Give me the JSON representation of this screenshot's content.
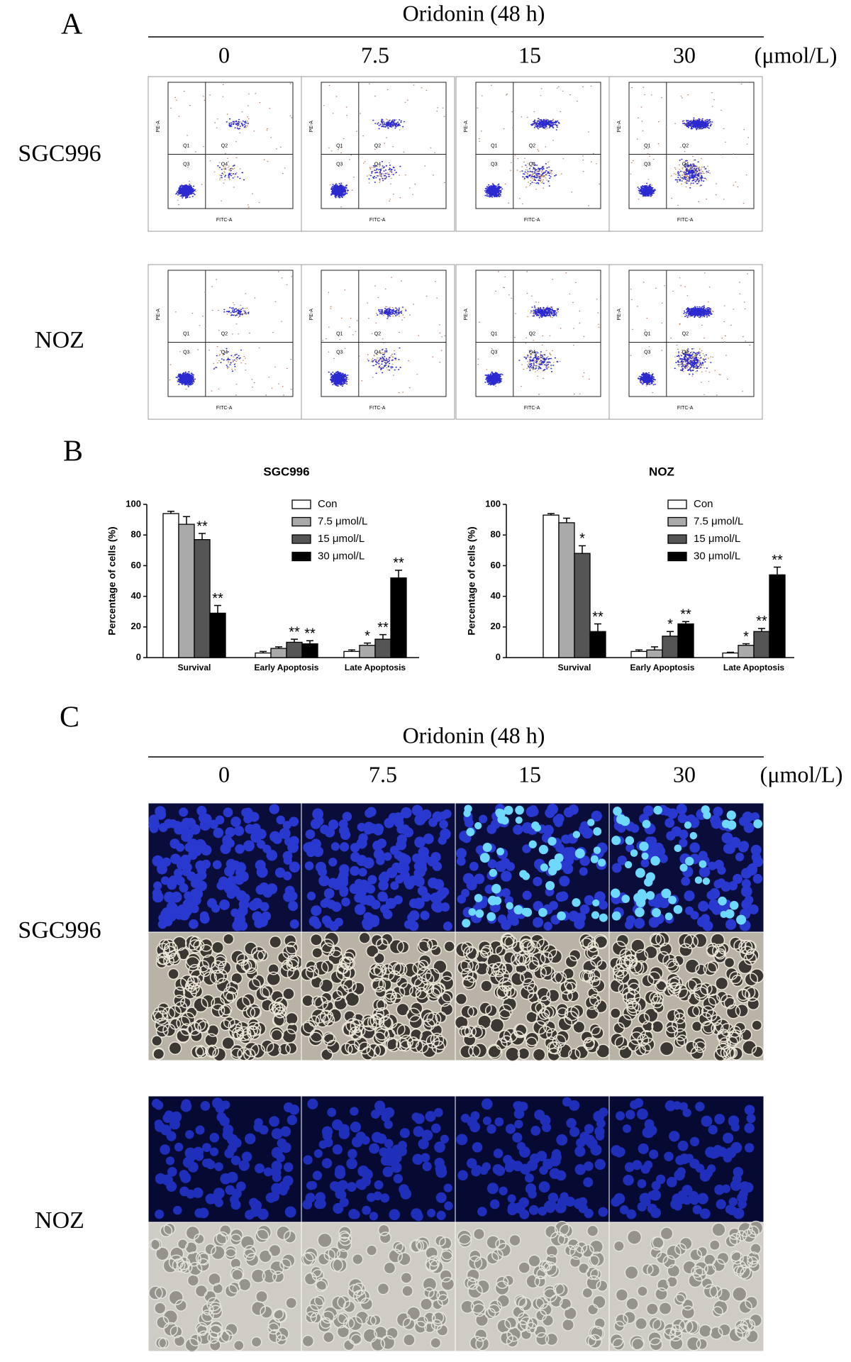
{
  "panel_labels": [
    "A",
    "B",
    "C"
  ],
  "treatment": "Oridonin (48 h)",
  "doses": [
    "0",
    "7.5",
    "15",
    "30"
  ],
  "dose_unit": "(μmol/L)",
  "cell_lines": [
    "SGC996",
    "NOZ"
  ],
  "flow_axis_labels": {
    "x": "FITC-A",
    "y": "PE-A"
  },
  "quadrants": [
    "Q1",
    "Q2",
    "Q3",
    "Q4"
  ],
  "chart_data": [
    {
      "type": "bar",
      "title": "SGC996",
      "y_label": "Percentage of cells (%)",
      "categories": [
        "Survival",
        "Early Apoptosis",
        "Late Apoptosis"
      ],
      "ylim": [
        0,
        100
      ],
      "yticks": [
        0,
        20,
        40,
        60,
        80,
        100
      ],
      "legend": "upper right",
      "series": [
        {
          "name": "Con",
          "color": "#ffffff",
          "values": [
            94,
            3,
            4
          ],
          "errors": [
            1.5,
            1,
            1
          ],
          "significance": [
            null,
            null,
            null
          ]
        },
        {
          "name": "7.5 μmol/L",
          "color": "#aaaaaa",
          "values": [
            87,
            6,
            8
          ],
          "errors": [
            5,
            1,
            1.5
          ],
          "significance": [
            null,
            null,
            "*"
          ]
        },
        {
          "name": "15 μmol/L",
          "color": "#555555",
          "values": [
            77,
            10,
            12
          ],
          "errors": [
            4,
            2,
            3
          ],
          "significance": [
            "**",
            "**",
            "**"
          ]
        },
        {
          "name": "30 μmol/L",
          "color": "#000000",
          "values": [
            29,
            9,
            52
          ],
          "errors": [
            5,
            2,
            5
          ],
          "significance": [
            "**",
            "**",
            "**"
          ]
        }
      ]
    },
    {
      "type": "bar",
      "title": "NOZ",
      "y_label": "Percentage of cells (%)",
      "categories": [
        "Survival",
        "Early Apoptosis",
        "Late Apoptosis"
      ],
      "ylim": [
        0,
        100
      ],
      "yticks": [
        0,
        20,
        40,
        60,
        80,
        100
      ],
      "legend": "upper right",
      "series": [
        {
          "name": "Con",
          "color": "#ffffff",
          "values": [
            93,
            4,
            3
          ],
          "errors": [
            1,
            1,
            0.5
          ],
          "significance": [
            null,
            null,
            null
          ]
        },
        {
          "name": "7.5 μmol/L",
          "color": "#aaaaaa",
          "values": [
            88,
            5,
            8
          ],
          "errors": [
            3,
            2,
            1
          ],
          "significance": [
            null,
            null,
            "*"
          ]
        },
        {
          "name": "15 μmol/L",
          "color": "#555555",
          "values": [
            68,
            14,
            17
          ],
          "errors": [
            5,
            3,
            2
          ],
          "significance": [
            "*",
            "*",
            "**"
          ]
        },
        {
          "name": "30 μmol/L",
          "color": "#000000",
          "values": [
            17,
            22,
            54
          ],
          "errors": [
            5,
            1.5,
            5
          ],
          "significance": [
            "**",
            "**",
            "**"
          ]
        }
      ]
    }
  ]
}
